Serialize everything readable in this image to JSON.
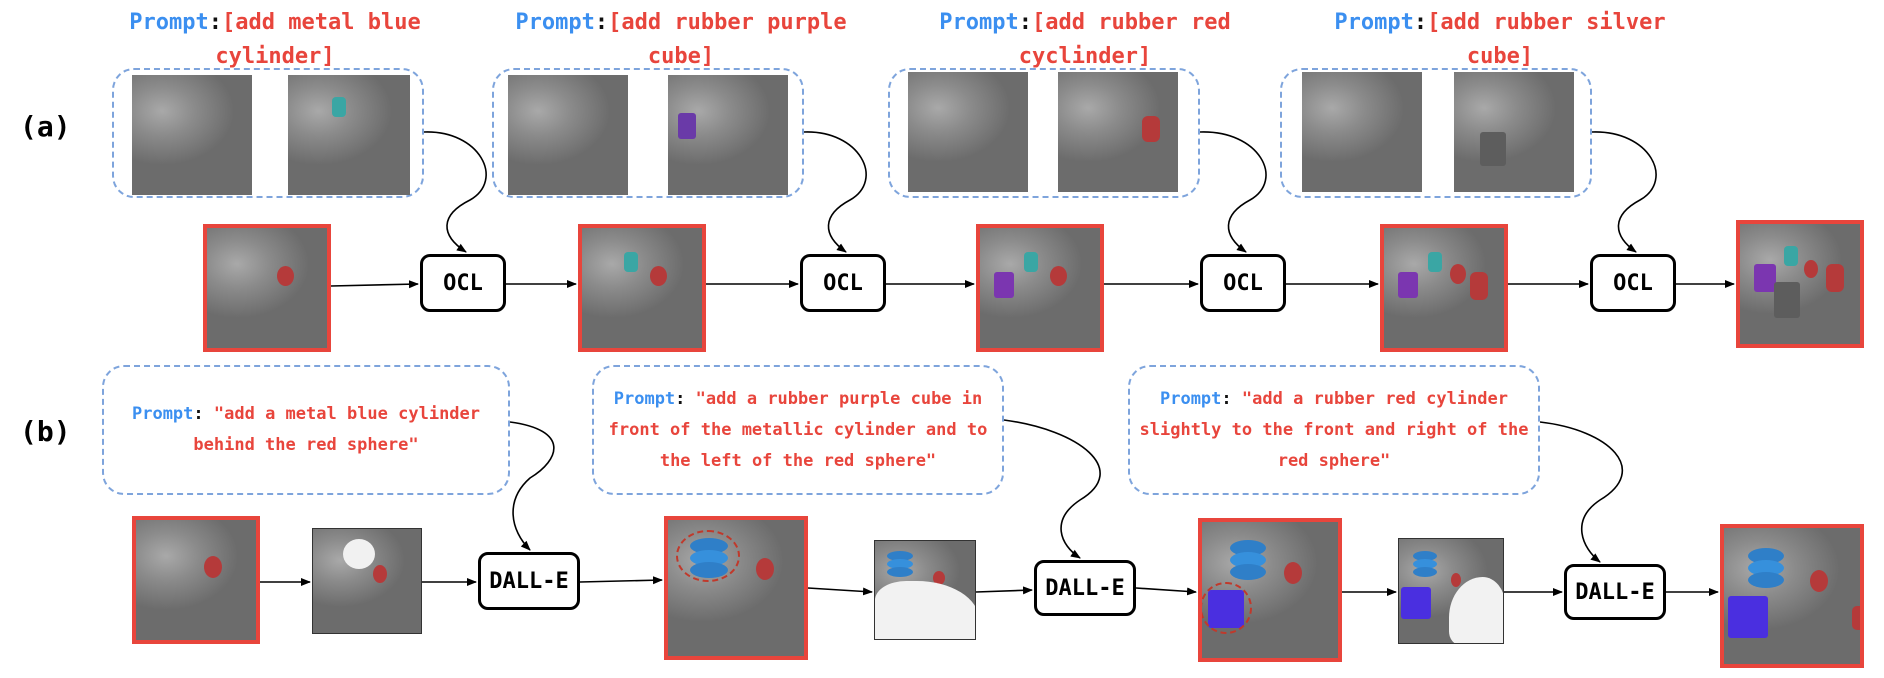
{
  "row_labels": {
    "a": "(a)",
    "b": "(b)"
  },
  "row_a": {
    "prompts": [
      {
        "keyword": "Prompt",
        "colon": ":",
        "text": "[add metal blue cylinder]"
      },
      {
        "keyword": "Prompt",
        "colon": ":",
        "text": "[add rubber purple cube]"
      },
      {
        "keyword": "Prompt",
        "colon": ":",
        "text": "[add rubber red cyclinder]"
      },
      {
        "keyword": "Prompt",
        "colon": ":",
        "text": "[add rubber silver cube]"
      }
    ],
    "model_label": "OCL"
  },
  "row_b": {
    "prompts": [
      {
        "keyword": "Prompt",
        "colon": ":",
        "text": "\"add a metal blue cylinder behind the red sphere\""
      },
      {
        "keyword": "Prompt",
        "colon": ":",
        "text": "\"add a rubber purple cube in front of the metallic cylinder and to the left of the red sphere\""
      },
      {
        "keyword": "Prompt",
        "colon": ":",
        "text": "\"add a rubber red cylinder slightly to the front and right of the red sphere\""
      }
    ],
    "model_label": "DALL-E"
  },
  "colors": {
    "prompt_keyword": "#3b8ff0",
    "prompt_text": "#e8453c",
    "dashed_border": "#7ea4dc",
    "highlight_frame": "#e8453c"
  }
}
